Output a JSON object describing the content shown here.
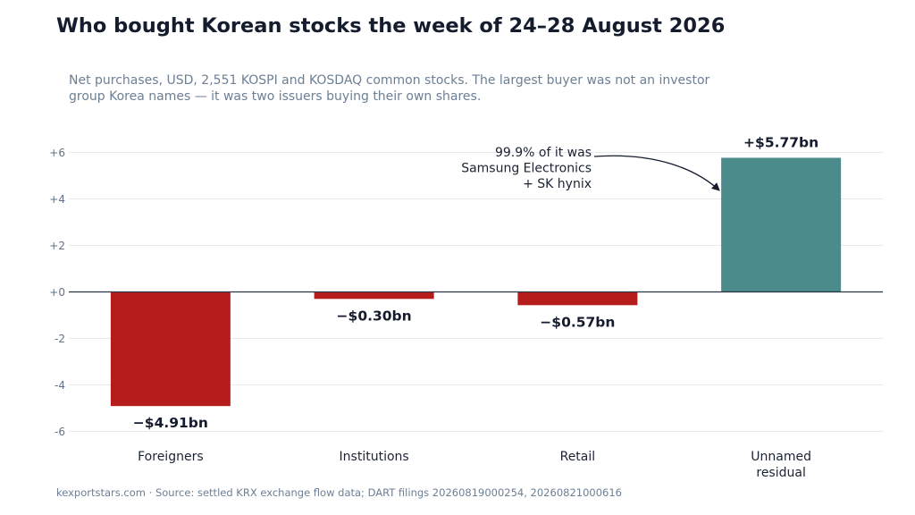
{
  "header": {
    "title": "Who bought Korean stocks the week of 24–28 August 2026",
    "subtitle": "Net purchases, USD, 2,551 KOSPI and KOSDAQ common stocks. The largest buyer was not an investor group Korea names — it was two issuers buying their own shares."
  },
  "footer": {
    "text": "kexportstars.com  ·  Source: settled KRX exchange flow data; DART filings 20260819000254, 20260821000616"
  },
  "chart_data": {
    "type": "bar",
    "title": "Who bought Korean stocks the week of 24–28 August 2026",
    "subtitle": "Net purchases, USD, 2,551 KOSPI and KOSDAQ common stocks. The largest buyer was not an investor group Korea names — it was two issuers buying their own shares.",
    "xlabel": "",
    "ylabel": "",
    "categories": [
      [
        "Foreigners"
      ],
      [
        "Institutions"
      ],
      [
        "Retail"
      ],
      [
        "Unnamed",
        "residual"
      ]
    ],
    "values": [
      -4.91,
      -0.3,
      -0.57,
      5.77
    ],
    "value_labels": [
      "−$4.91bn",
      "−$0.30bn",
      "−$0.57bn",
      "+$5.77bn"
    ],
    "ylim": [
      -6.5,
      6.6
    ],
    "yticks": [
      6,
      4,
      2,
      0,
      -2,
      -4,
      -6
    ],
    "ytick_labels": [
      "+6",
      "+4",
      "+2",
      "+0",
      "-2",
      "-4",
      "-6"
    ],
    "grid": true,
    "colors": {
      "negative": "#b71c1c",
      "positive": "#4b8b8b",
      "grid": "#e6e9ee",
      "baseline": "#2b3346"
    },
    "annotation": {
      "lines": [
        "99.9% of it was",
        "Samsung Electronics",
        "+ SK hynix"
      ],
      "target_category": 3
    }
  }
}
